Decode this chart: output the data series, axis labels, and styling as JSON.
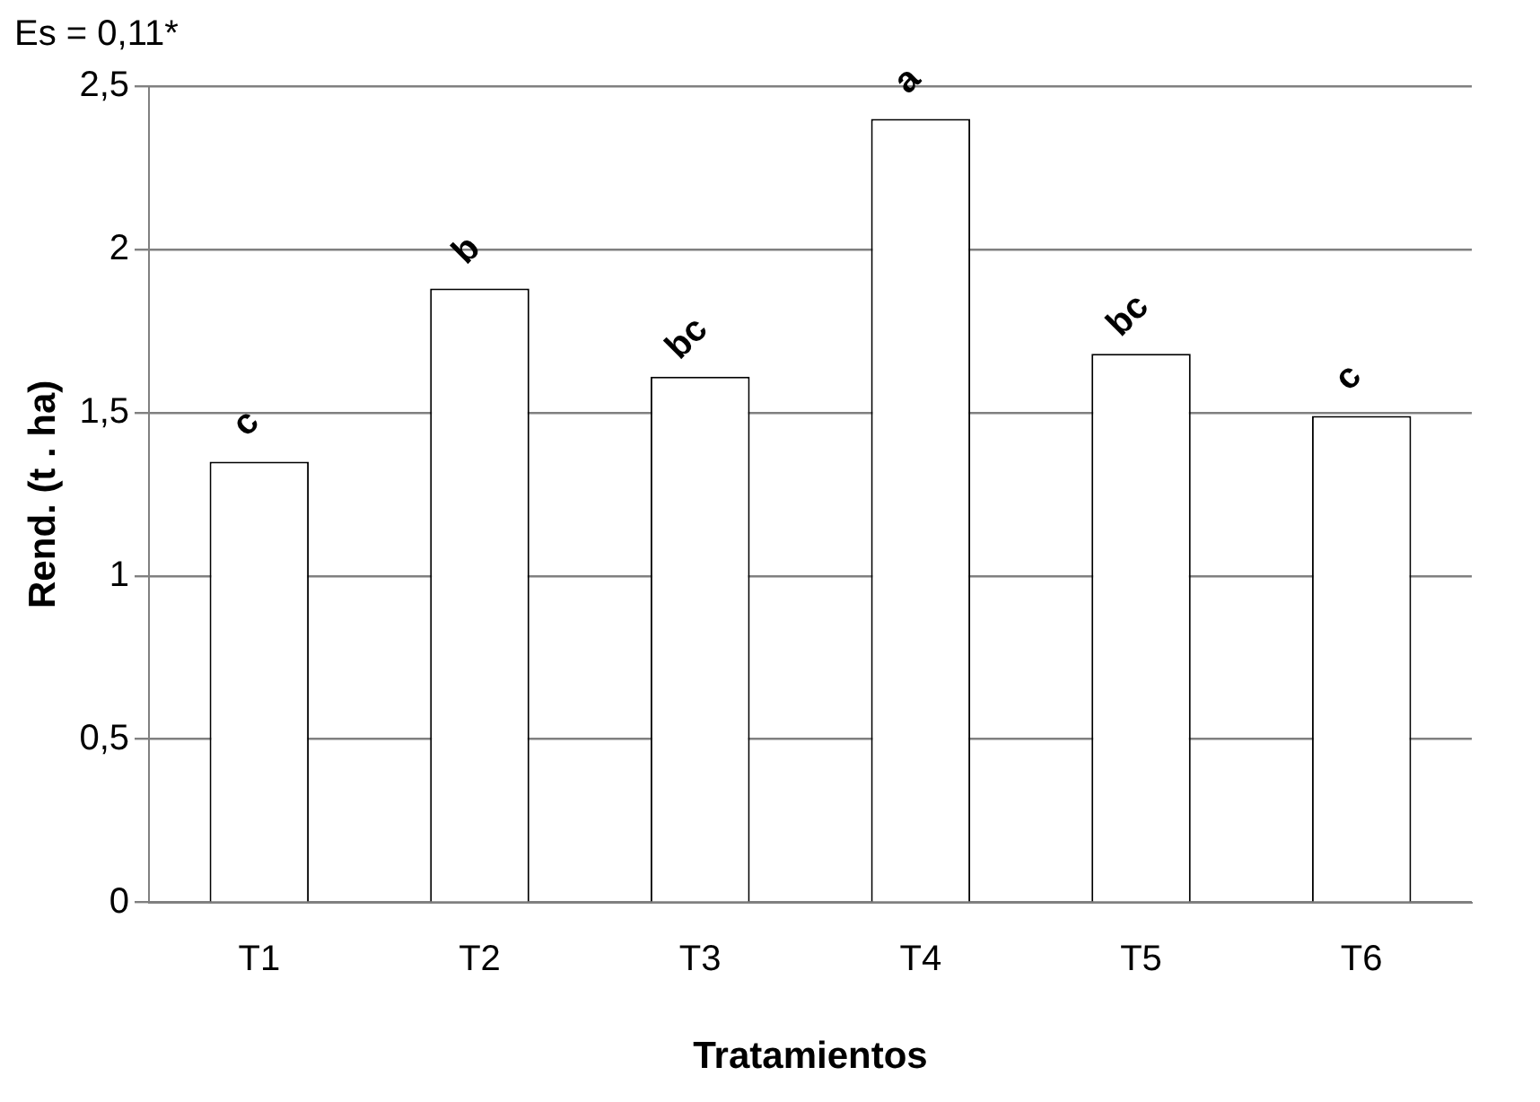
{
  "chart_data": {
    "type": "bar",
    "xlabel": "Tratamientos",
    "ylabel": "Rend. (t . ha)",
    "annotations": [
      "Es = 0,11*"
    ],
    "categories": [
      "T1",
      "T2",
      "T3",
      "T4",
      "T5",
      "T6"
    ],
    "values": [
      1.35,
      1.88,
      1.61,
      2.4,
      1.68,
      1.49
    ],
    "value_labels": [
      "c",
      "b",
      "bc",
      "a",
      "bc",
      "c"
    ],
    "color": "#ffffff",
    "ylim": [
      0,
      2.5
    ],
    "yticks": [
      0,
      {
        "value": 0.5,
        "label": "0,5"
      },
      1,
      {
        "value": 1.5,
        "label": "1,5"
      },
      2,
      {
        "value": 2.5,
        "label": "2,5"
      }
    ],
    "grid": "y",
    "legend": false
  }
}
